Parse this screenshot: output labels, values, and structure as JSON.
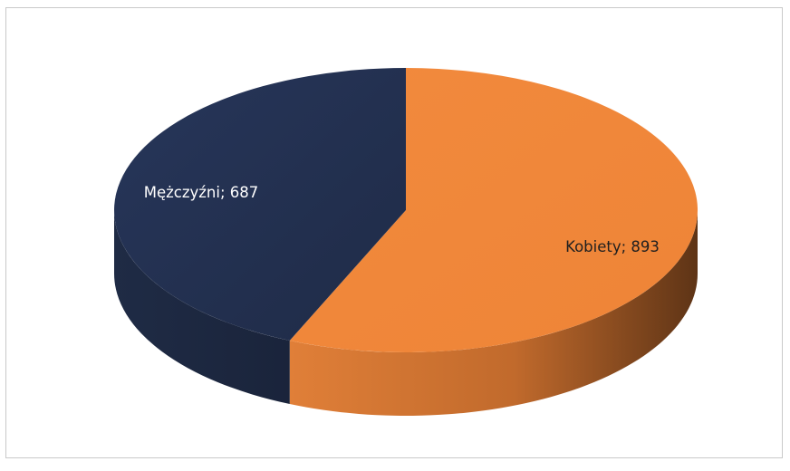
{
  "chart_data": {
    "type": "pie",
    "style": "3d",
    "title": "",
    "categories": [
      "Mężczyźni",
      "Kobiety"
    ],
    "values": [
      687,
      893
    ],
    "colors": [
      "#24324f",
      "#f0883b"
    ],
    "labels": [
      "Mężczyźni; 687",
      "Kobiety; 893"
    ],
    "label_colors": [
      "#ffffff",
      "#1f1f1f"
    ],
    "legend": "none"
  }
}
